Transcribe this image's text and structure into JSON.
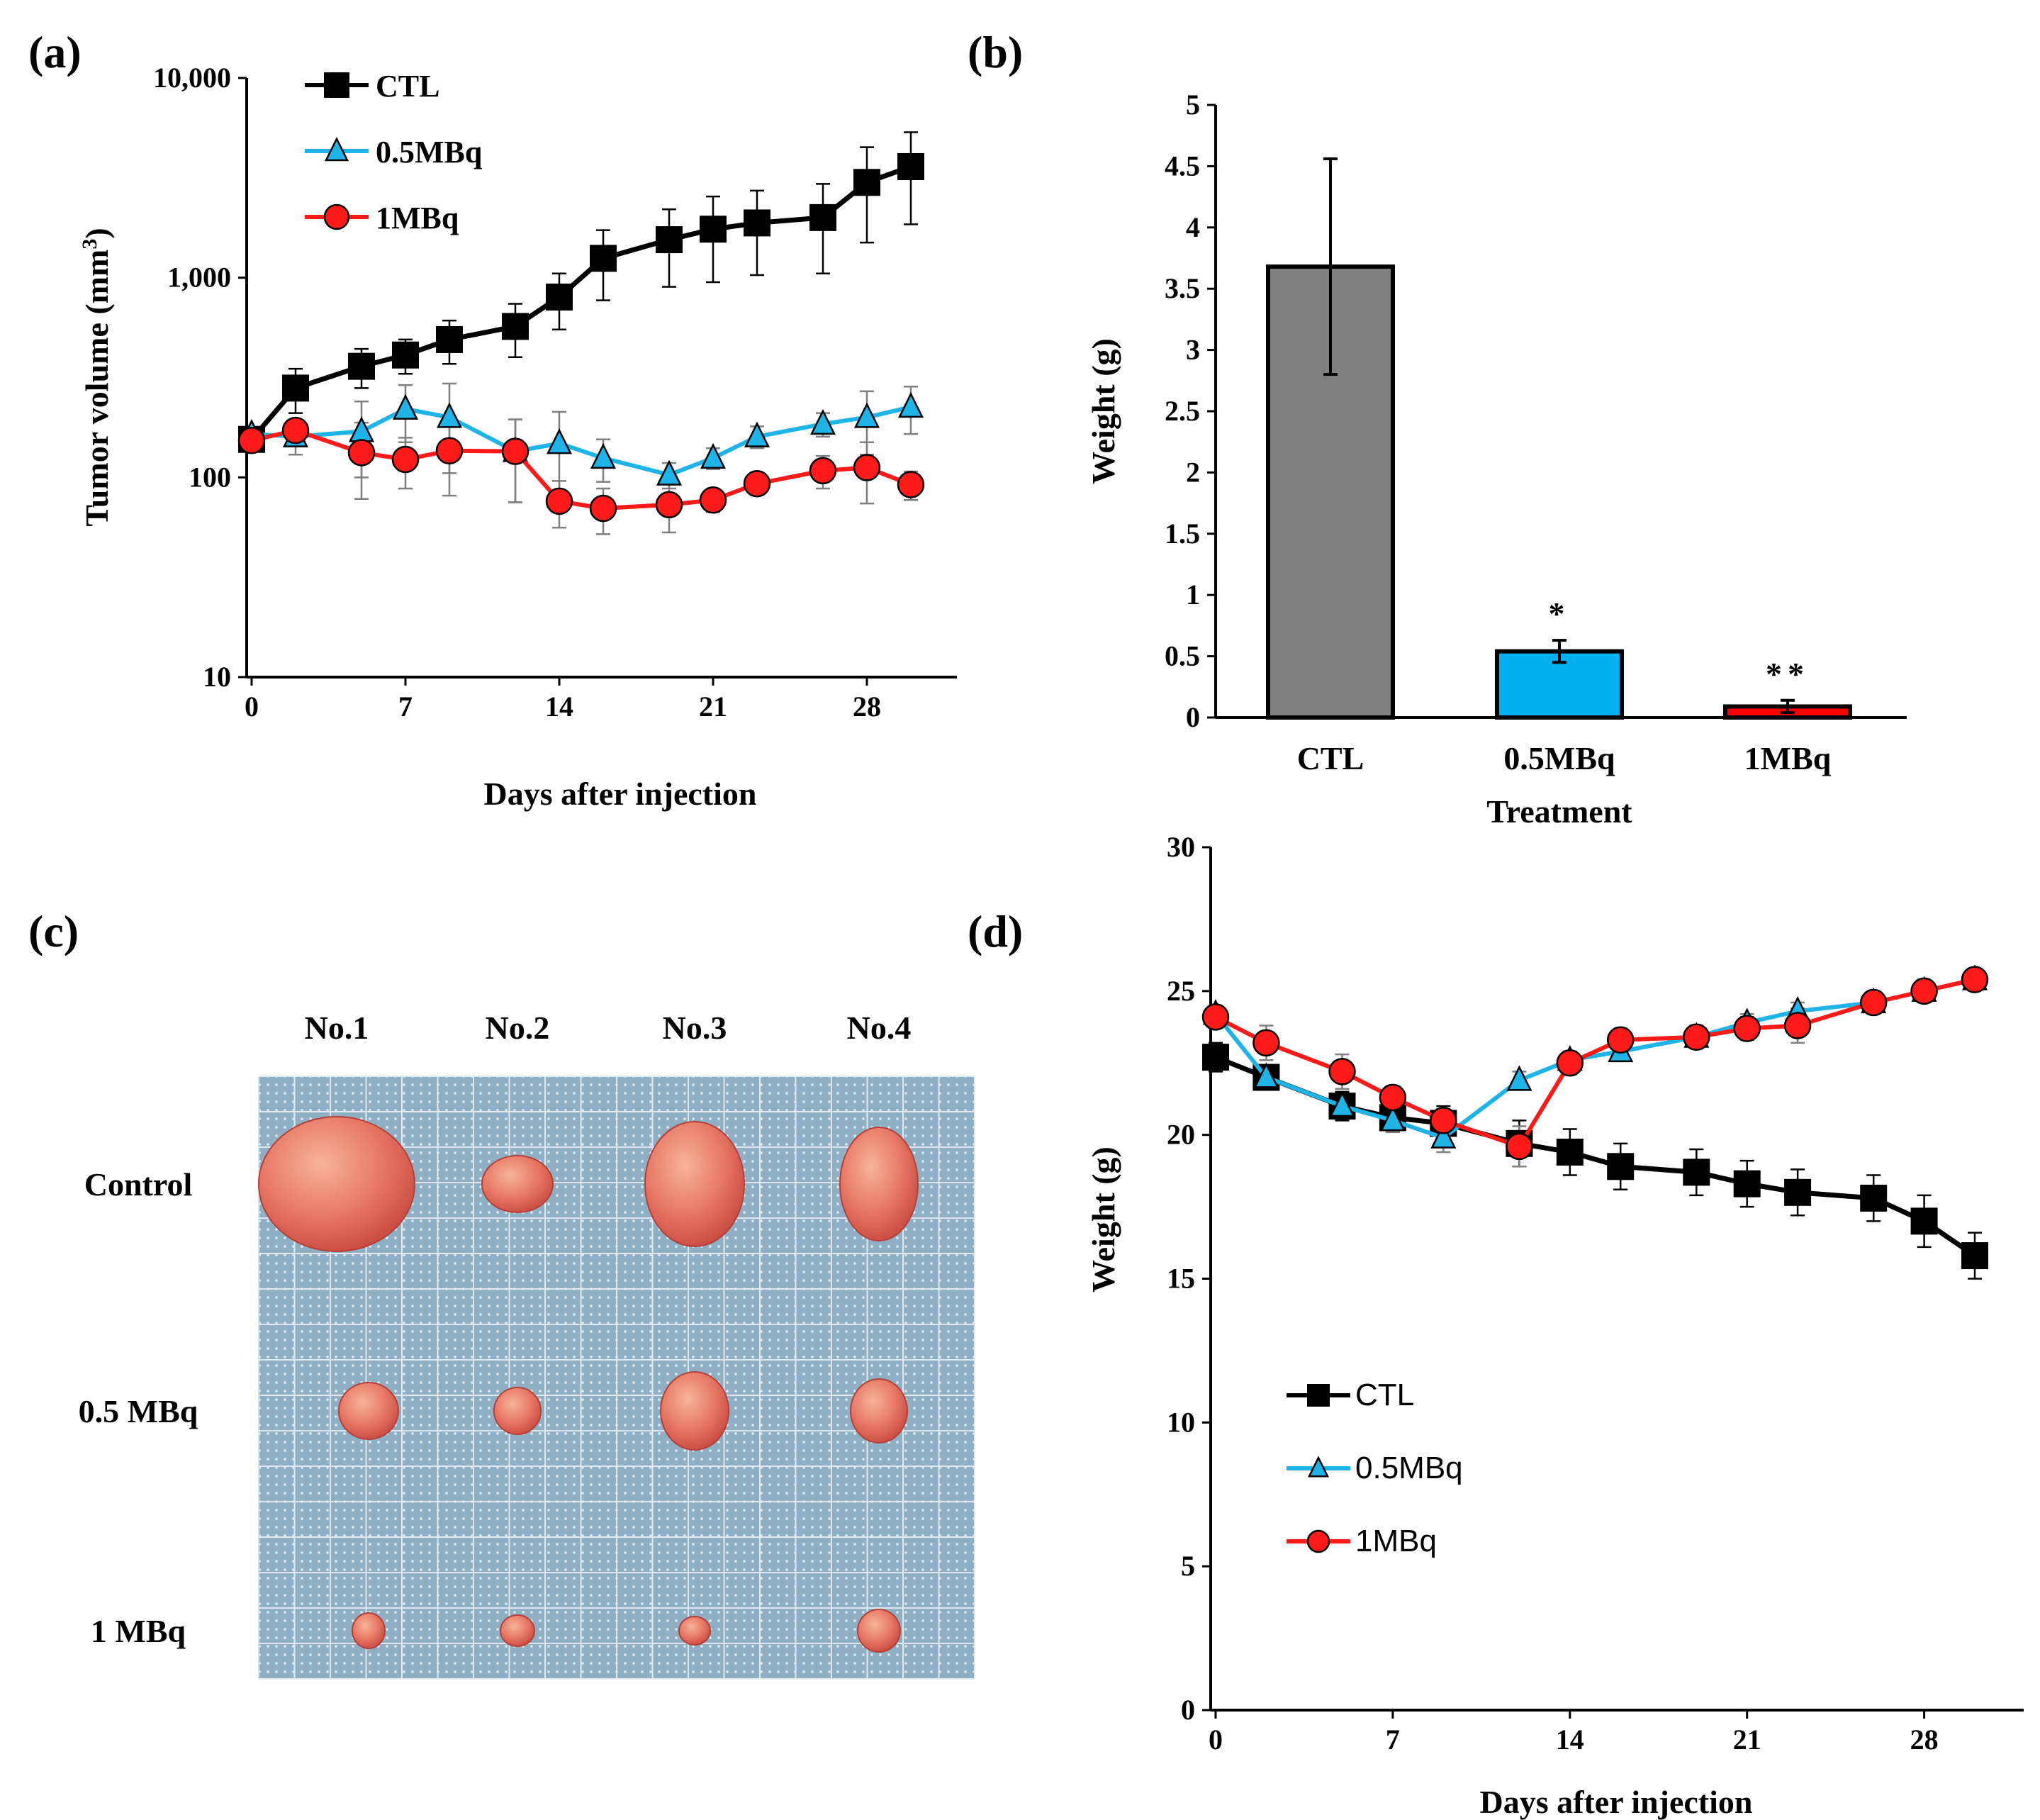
{
  "figure": {
    "panel_labels": [
      "(a)",
      "(b)",
      "(c)",
      "(d)"
    ]
  },
  "chart_data": [
    {
      "id": "a",
      "type": "line",
      "y_scale": "log",
      "xlabel": "Days after injection",
      "ylabel": "Tumor volume (mm",
      "ylabel_sup": "3",
      "ylabel_close": ")",
      "xlim": [
        0,
        31
      ],
      "ylim": [
        10,
        10000
      ],
      "xticks": [
        0,
        7,
        14,
        21,
        28
      ],
      "yticks": [
        10,
        100,
        1000,
        10000
      ],
      "ytick_labels": [
        "10",
        "100",
        "1,000",
        "10,000"
      ],
      "legend": [
        "CTL",
        "0.5MBq",
        "1MBq"
      ],
      "series": [
        {
          "name": "CTL",
          "marker": "square",
          "color": "#000000",
          "x": [
            0,
            2,
            5,
            7,
            9,
            12,
            14,
            16,
            19,
            21,
            23,
            26,
            28,
            30
          ],
          "y": [
            155,
            280,
            360,
            410,
            490,
            570,
            800,
            1250,
            1550,
            1750,
            1880,
            2000,
            3000,
            3600
          ],
          "err": [
            20,
            70,
            80,
            80,
            120,
            170,
            250,
            480,
            650,
            800,
            850,
            950,
            1500,
            1750
          ]
        },
        {
          "name": "0.5MBq",
          "marker": "triangle",
          "color": "#1fb4e8",
          "x": [
            0,
            2,
            5,
            7,
            9,
            12,
            14,
            16,
            19,
            21,
            23,
            26,
            28,
            30
          ],
          "y": [
            165,
            160,
            170,
            220,
            200,
            135,
            148,
            125,
            103,
            125,
            160,
            185,
            200,
            225
          ],
          "err": [
            10,
            30,
            70,
            70,
            95,
            60,
            65,
            30,
            15,
            15,
            20,
            25,
            70,
            60
          ]
        },
        {
          "name": "1MBq",
          "marker": "circle",
          "color": "#ff1a1a",
          "x": [
            0,
            2,
            5,
            7,
            9,
            12,
            14,
            16,
            19,
            21,
            23,
            26,
            28,
            30
          ],
          "y": [
            153,
            172,
            133,
            123,
            136,
            135,
            76,
            70,
            73,
            77,
            93,
            108,
            112,
            92
          ],
          "err": [
            15,
            20,
            55,
            35,
            55,
            60,
            20,
            18,
            20,
            10,
            10,
            20,
            38,
            15
          ]
        }
      ]
    },
    {
      "id": "b",
      "type": "bar",
      "xlabel": "Treatment",
      "ylabel": "Weight (g)",
      "ylim": [
        0,
        5
      ],
      "yticks": [
        0,
        0.5,
        1,
        1.5,
        2,
        2.5,
        3,
        3.5,
        4,
        4.5,
        5
      ],
      "categories": [
        "CTL",
        "0.5MBq",
        "1MBq"
      ],
      "values": [
        3.68,
        0.54,
        0.09
      ],
      "errors": [
        0.88,
        0.09,
        0.05
      ],
      "colors": [
        "#808080",
        "#00b0f0",
        "#ff0000"
      ],
      "annotations": [
        "",
        "*",
        "**"
      ]
    },
    {
      "id": "d",
      "type": "line",
      "xlabel": "Days after injection",
      "ylabel": "Weight (g)",
      "xlim": [
        0,
        31.5
      ],
      "ylim": [
        0,
        30
      ],
      "xticks": [
        0,
        7,
        14,
        21,
        28
      ],
      "yticks": [
        0,
        5,
        10,
        15,
        20,
        25,
        30
      ],
      "legend": [
        "CTL",
        "0.5MBq",
        "1MBq"
      ],
      "series": [
        {
          "name": "CTL",
          "marker": "square",
          "color": "#000000",
          "x": [
            0,
            2,
            5,
            7,
            9,
            12,
            14,
            16,
            19,
            21,
            23,
            26,
            28,
            30
          ],
          "y": [
            22.7,
            22.0,
            21.0,
            20.6,
            20.4,
            19.7,
            19.4,
            18.9,
            18.7,
            18.3,
            18.0,
            17.8,
            17.0,
            15.8
          ],
          "err": [
            0.5,
            0.4,
            0.5,
            0.5,
            0.6,
            0.8,
            0.8,
            0.8,
            0.8,
            0.8,
            0.8,
            0.8,
            0.9,
            0.8
          ]
        },
        {
          "name": "0.5MBq",
          "marker": "triangle",
          "color": "#1fb4e8",
          "x": [
            0,
            2,
            5,
            7,
            9,
            12,
            14,
            16,
            19,
            21,
            23,
            26,
            28,
            30
          ],
          "y": [
            24.2,
            22.0,
            21.0,
            20.5,
            19.9,
            21.9,
            22.6,
            22.9,
            23.4,
            23.9,
            24.3,
            24.6,
            25.0,
            25.4
          ],
          "err": [
            0.3,
            0.3,
            0.4,
            0.4,
            0.5,
            0.3,
            0.3,
            0.3,
            0.3,
            0.3,
            0.3,
            0.3,
            0.3,
            0.3
          ]
        },
        {
          "name": "1MBq",
          "marker": "circle",
          "color": "#ff1a1a",
          "x": [
            0,
            2,
            5,
            7,
            9,
            12,
            14,
            16,
            19,
            21,
            23,
            26,
            28,
            30
          ],
          "y": [
            24.1,
            23.2,
            22.2,
            21.3,
            20.5,
            19.6,
            22.5,
            23.3,
            23.4,
            23.7,
            23.8,
            24.6,
            25.0,
            25.4
          ],
          "err": [
            0.3,
            0.6,
            0.6,
            0.4,
            0.4,
            0.7,
            0.4,
            0.4,
            0.4,
            0.4,
            0.6,
            0.4,
            0.4,
            0.3
          ]
        }
      ]
    }
  ],
  "photo": {
    "columns": [
      "No.1",
      "No.2",
      "No.3",
      "No.4"
    ],
    "rows": [
      "Control",
      "0.5 MBq",
      "1 MBq"
    ],
    "grid_color": "#9fb7c6",
    "tissue_color": "#e8706a"
  }
}
